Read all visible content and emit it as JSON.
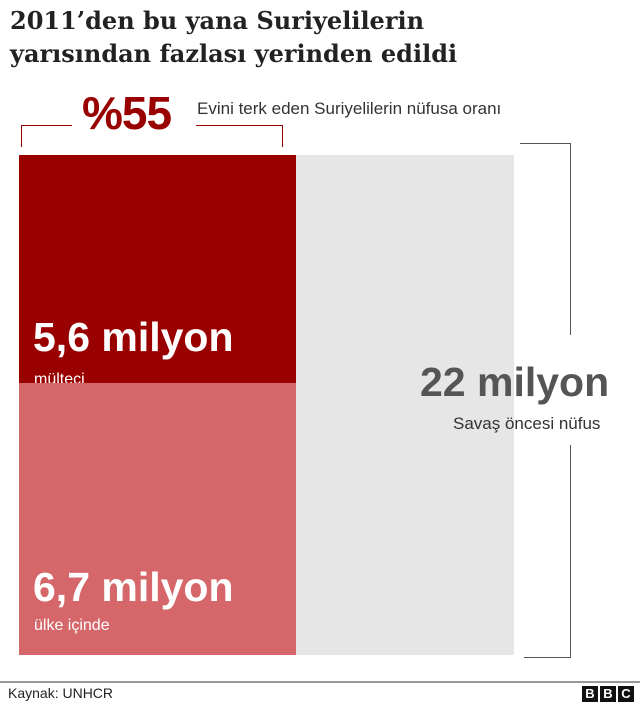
{
  "title_line1": "2011’den bu yana Suriyelilerin",
  "title_line2": "yarısından fazlası yerinden edildi",
  "share": {
    "value": "%55",
    "label": "Evini terk eden Suriyelilerin nüfusa oranı"
  },
  "chart_data": {
    "type": "bar",
    "stacked": true,
    "unit": "milyon",
    "segments": [
      {
        "value": 5.6,
        "value_label": "5,6 milyon",
        "label": "mülteci",
        "color": "#990000"
      },
      {
        "value": 6.7,
        "value_label": "6,7 milyon",
        "label": "ülke içinde",
        "color": "#d5676a"
      }
    ],
    "total": {
      "value": 22,
      "value_label": "22 milyon",
      "label": "Savaş öncesi nüfus",
      "color": "#e6e6e6"
    }
  },
  "footer": {
    "source": "Kaynak: UNHCR",
    "logo": [
      "B",
      "B",
      "C"
    ]
  }
}
